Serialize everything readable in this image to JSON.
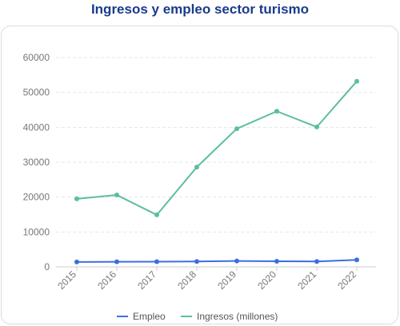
{
  "chart_data": {
    "type": "line",
    "title": "Ingresos y empleo sector turismo",
    "categories": [
      "2015",
      "2016",
      "2017",
      "2018",
      "2019",
      "2020",
      "2021",
      "2022"
    ],
    "series": [
      {
        "name": "Empleo",
        "color": "#3b6fe0",
        "values": [
          1400,
          1450,
          1500,
          1550,
          1700,
          1600,
          1550,
          2000
        ]
      },
      {
        "name": "Ingresos (millones)",
        "color": "#5bbf9a",
        "values": [
          19500,
          20600,
          14900,
          28600,
          39600,
          44600,
          40100,
          53200
        ]
      }
    ],
    "ylim": [
      0,
      60000
    ],
    "yticks": [
      "0",
      "10000",
      "20000",
      "30000",
      "40000",
      "50000",
      "60000"
    ],
    "grid": true,
    "legend_position": "bottom"
  }
}
